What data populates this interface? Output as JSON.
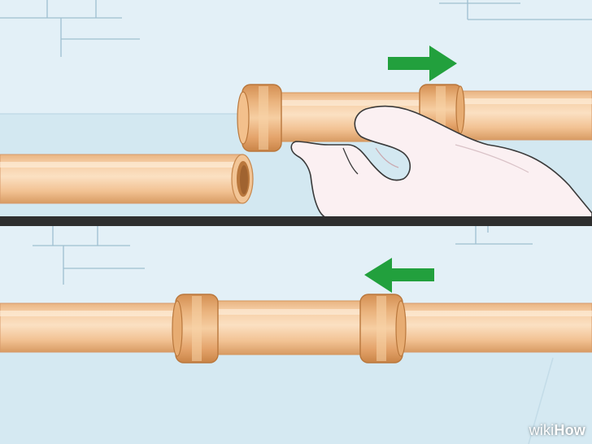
{
  "watermark": {
    "prefix": "wiki",
    "brand": "How"
  },
  "colors": {
    "wall": "#e2eff6",
    "wall_band": "#cfe6f0",
    "mortar": "#a9c7d6",
    "pipe": "#f4c79a",
    "pipe_dark": "#d99d66",
    "coupling": "#e7a869",
    "arrow": "#1f9e3a",
    "divider": "#2b2b2b",
    "hand": "#f9eef0"
  },
  "panels": [
    {
      "name": "top",
      "arrow_direction": "right",
      "description_visible": false
    },
    {
      "name": "bottom",
      "arrow_direction": "left",
      "description_visible": false
    }
  ],
  "icons": [
    "arrow-right-icon",
    "arrow-left-icon",
    "hand-icon"
  ]
}
